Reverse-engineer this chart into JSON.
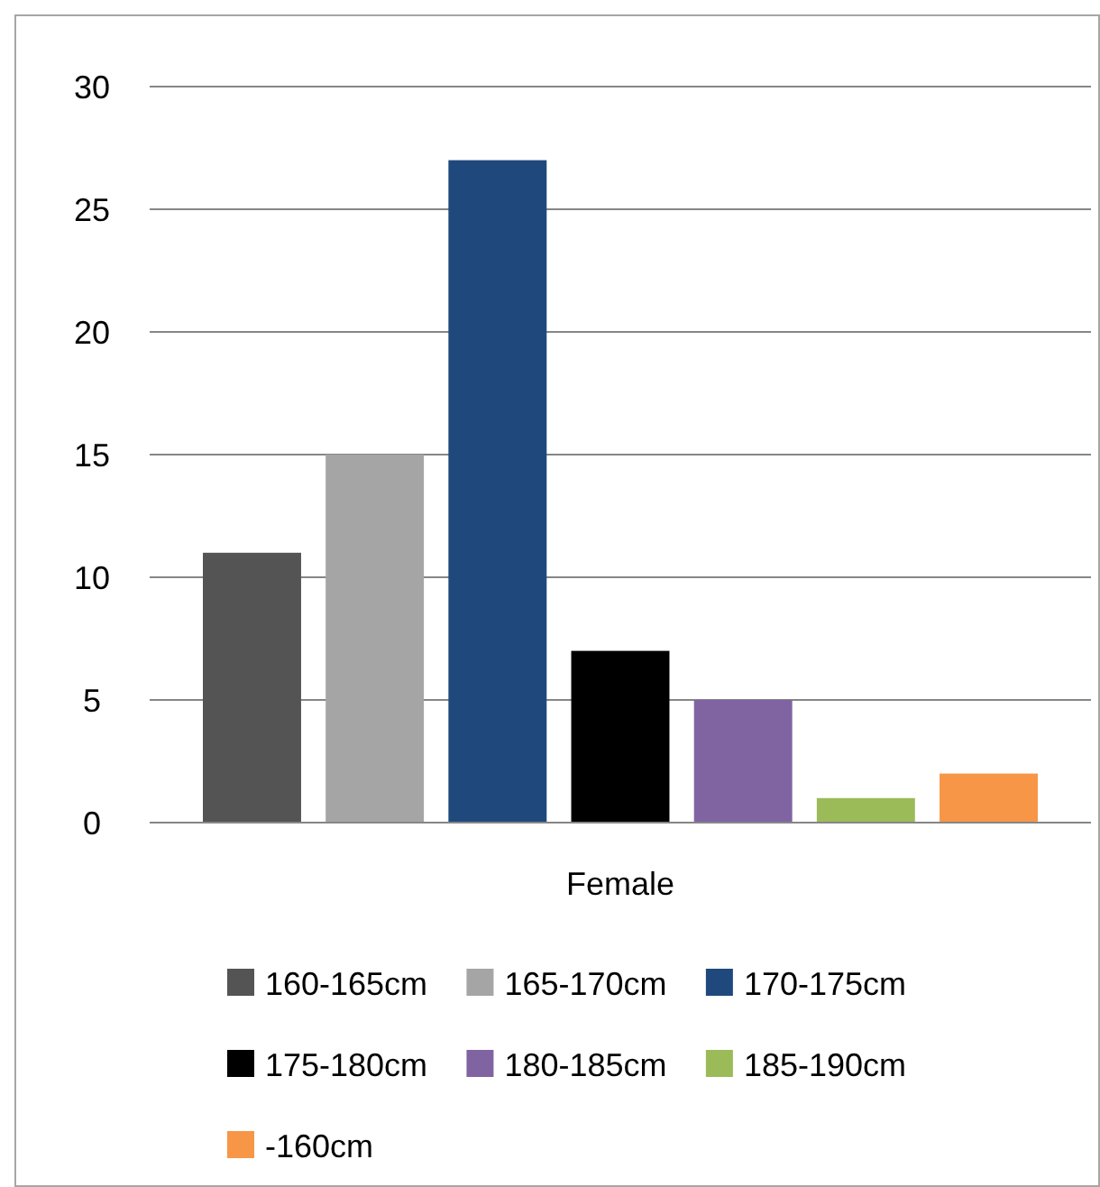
{
  "chart_data": {
    "type": "bar",
    "categories": [
      "Female"
    ],
    "series": [
      {
        "name": "160-165cm",
        "color": "#545454",
        "values": [
          11
        ]
      },
      {
        "name": "165-170cm",
        "color": "#a5a5a5",
        "values": [
          15
        ]
      },
      {
        "name": "170-175cm",
        "color": "#1f497d",
        "values": [
          27
        ]
      },
      {
        "name": "175-180cm",
        "color": "#000000",
        "values": [
          7
        ]
      },
      {
        "name": "180-185cm",
        "color": "#8064a2",
        "values": [
          5
        ]
      },
      {
        "name": "185-190cm",
        "color": "#9bbb59",
        "values": [
          1
        ]
      },
      {
        "name": "-160cm",
        "color": "#f79646",
        "values": [
          2
        ]
      }
    ],
    "ylim": [
      0,
      30
    ],
    "yticks": [
      0,
      5,
      10,
      15,
      20,
      25,
      30
    ],
    "grid": "y",
    "legend": "bottom"
  }
}
